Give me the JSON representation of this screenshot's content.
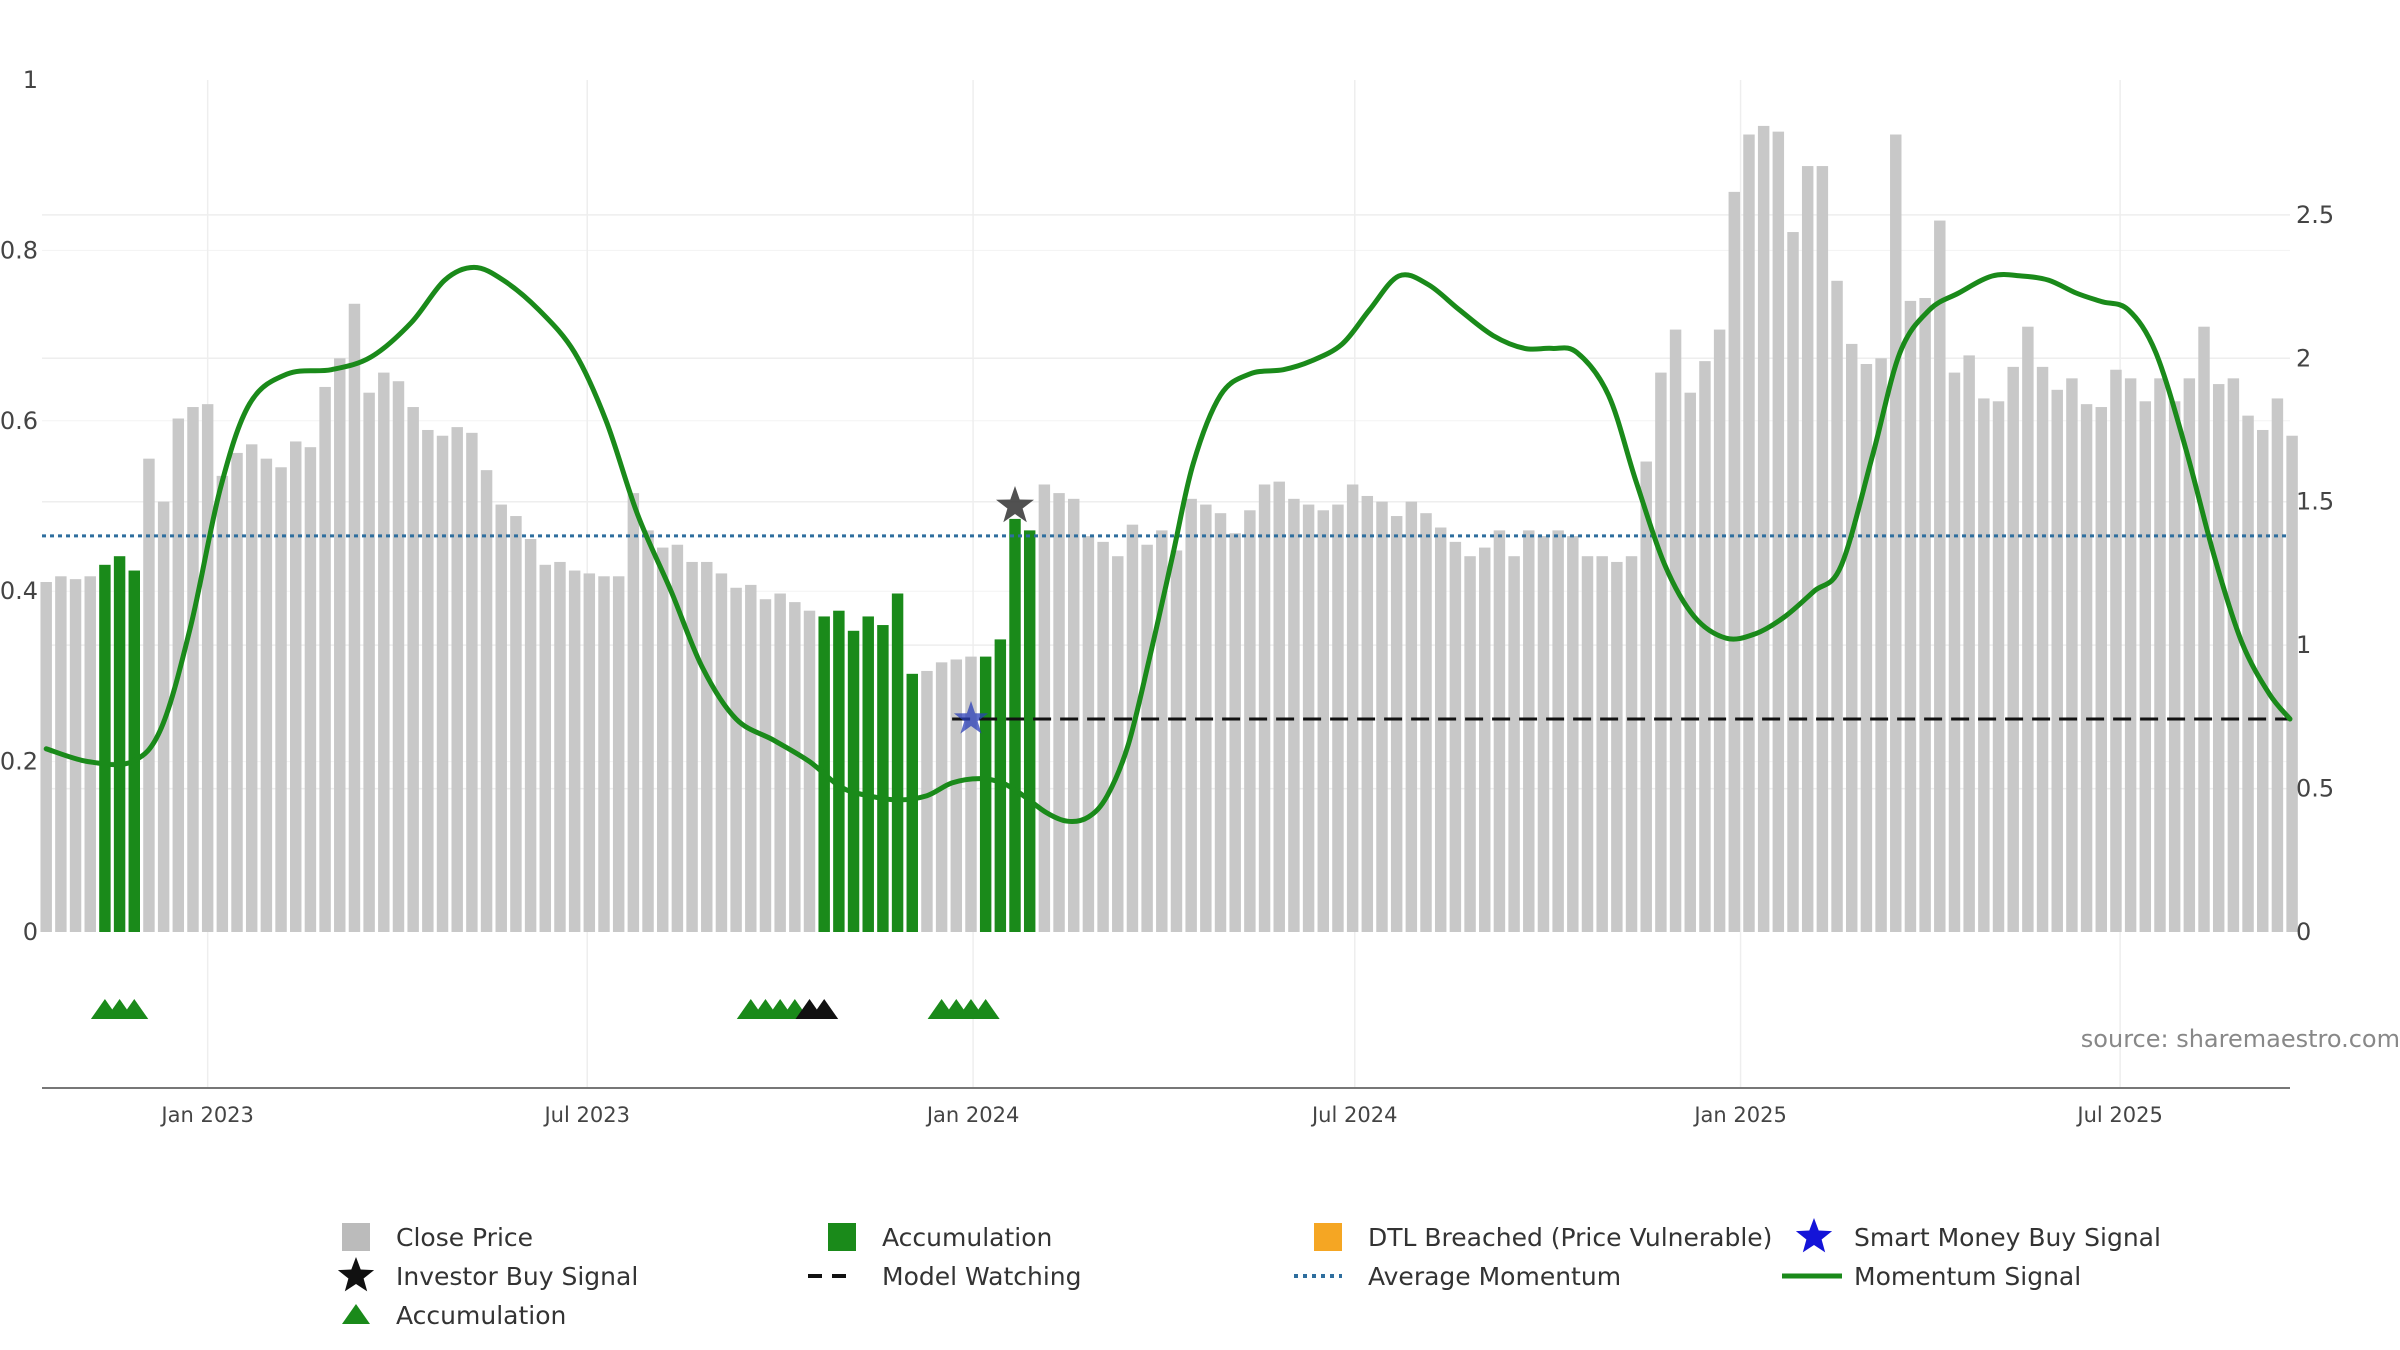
{
  "chart_data": {
    "type": "bar",
    "source": "source: sharemaestro.com",
    "left_axis": {
      "ticks": [
        0,
        0.2,
        0.4,
        0.6,
        0.8,
        1
      ],
      "tick_labels": [
        "0",
        "0.2",
        "0.4",
        "0.6",
        "0.8",
        "1"
      ],
      "ylim": [
        0,
        1
      ]
    },
    "right_axis": {
      "ticks": [
        0,
        0.5,
        1,
        1.5,
        2,
        2.5
      ],
      "tick_labels": [
        "0",
        "0.5",
        "1",
        "1.5",
        "2",
        "2.5"
      ],
      "ylim": [
        0,
        2.97
      ]
    },
    "x_axis": {
      "tick_labels": [
        "Jan 2023",
        "Jul 2023",
        "Jan 2024",
        "Jul 2024",
        "Jan 2025",
        "Jul 2025"
      ],
      "tick_dates": [
        "2023-01-01",
        "2023-07-01",
        "2024-01-01",
        "2024-07-01",
        "2025-01-01",
        "2025-07-01"
      ],
      "range": [
        "2022-10-14",
        "2025-09-20"
      ]
    },
    "close_price": {
      "name": "Close Price",
      "start_date": "2022-10-16",
      "interval_days": 7,
      "values": [
        1.22,
        1.24,
        1.23,
        1.24,
        1.28,
        1.31,
        1.26,
        1.65,
        1.5,
        1.79,
        1.83,
        1.84,
        1.59,
        1.67,
        1.7,
        1.65,
        1.62,
        1.71,
        1.69,
        1.9,
        2.0,
        2.19,
        1.88,
        1.95,
        1.92,
        1.83,
        1.75,
        1.73,
        1.76,
        1.74,
        1.61,
        1.49,
        1.45,
        1.37,
        1.28,
        1.29,
        1.26,
        1.25,
        1.24,
        1.24,
        1.53,
        1.4,
        1.34,
        1.35,
        1.29,
        1.29,
        1.25,
        1.2,
        1.21,
        1.16,
        1.18,
        1.15,
        1.12,
        1.1,
        1.12,
        1.05,
        1.1,
        1.07,
        1.18,
        0.9,
        0.91,
        0.94,
        0.95,
        0.96,
        0.96,
        1.02,
        1.44,
        1.4,
        1.56,
        1.53,
        1.51,
        1.38,
        1.36,
        1.31,
        1.42,
        1.35,
        1.4,
        1.33,
        1.51,
        1.49,
        1.46,
        1.39,
        1.47,
        1.56,
        1.57,
        1.51,
        1.49,
        1.47,
        1.49,
        1.56,
        1.52,
        1.5,
        1.45,
        1.5,
        1.46,
        1.41,
        1.36,
        1.31,
        1.34,
        1.4,
        1.31,
        1.4,
        1.38,
        1.4,
        1.38,
        1.31,
        1.31,
        1.29,
        1.31,
        1.64,
        1.95,
        2.1,
        1.88,
        1.99,
        2.1,
        2.58,
        2.78,
        2.81,
        2.79,
        2.44,
        2.67,
        2.67,
        2.27,
        2.05,
        1.98,
        2.0,
        2.78,
        2.2,
        2.21,
        2.48,
        1.95,
        2.01,
        1.86,
        1.85,
        1.97,
        2.11,
        1.97,
        1.89,
        1.93,
        1.84,
        1.83,
        1.96,
        1.93,
        1.85,
        1.93,
        1.85,
        1.93,
        2.11,
        1.91,
        1.93,
        1.8,
        1.75,
        1.86,
        1.73
      ]
    },
    "accumulation_bars": {
      "name": "Accumulation",
      "color": "#1a8a1a",
      "indices": [
        4,
        5,
        6,
        53,
        54,
        55,
        56,
        57,
        58,
        59,
        64,
        65,
        66,
        67
      ]
    },
    "momentum_signal": {
      "name": "Momentum Signal",
      "color": "#1a8a1a",
      "axis": "left",
      "points": [
        [
          "2022-10-16",
          0.215
        ],
        [
          "2022-11-05",
          0.2
        ],
        [
          "2022-11-26",
          0.2
        ],
        [
          "2022-12-10",
          0.24
        ],
        [
          "2022-12-24",
          0.36
        ],
        [
          "2023-01-07",
          0.52
        ],
        [
          "2023-01-21",
          0.62
        ],
        [
          "2023-02-08",
          0.655
        ],
        [
          "2023-03-01",
          0.66
        ],
        [
          "2023-03-20",
          0.675
        ],
        [
          "2023-04-08",
          0.715
        ],
        [
          "2023-04-24",
          0.765
        ],
        [
          "2023-05-08",
          0.78
        ],
        [
          "2023-05-22",
          0.765
        ],
        [
          "2023-06-08",
          0.73
        ],
        [
          "2023-06-25",
          0.68
        ],
        [
          "2023-07-10",
          0.6
        ],
        [
          "2023-07-25",
          0.49
        ],
        [
          "2023-08-10",
          0.4
        ],
        [
          "2023-08-25",
          0.31
        ],
        [
          "2023-09-10",
          0.25
        ],
        [
          "2023-09-28",
          0.225
        ],
        [
          "2023-10-15",
          0.2
        ],
        [
          "2023-10-30",
          0.17
        ],
        [
          "2023-11-12",
          0.16
        ],
        [
          "2023-11-26",
          0.155
        ],
        [
          "2023-12-10",
          0.16
        ],
        [
          "2023-12-22",
          0.175
        ],
        [
          "2024-01-04",
          0.18
        ],
        [
          "2024-01-15",
          0.175
        ],
        [
          "2024-01-25",
          0.16
        ],
        [
          "2024-02-05",
          0.14
        ],
        [
          "2024-02-15",
          0.13
        ],
        [
          "2024-02-25",
          0.135
        ],
        [
          "2024-03-05",
          0.16
        ],
        [
          "2024-03-15",
          0.22
        ],
        [
          "2024-03-25",
          0.32
        ],
        [
          "2024-04-05",
          0.44
        ],
        [
          "2024-04-15",
          0.55
        ],
        [
          "2024-04-28",
          0.63
        ],
        [
          "2024-05-12",
          0.655
        ],
        [
          "2024-05-28",
          0.66
        ],
        [
          "2024-06-10",
          0.67
        ],
        [
          "2024-06-25",
          0.69
        ],
        [
          "2024-07-08",
          0.73
        ],
        [
          "2024-07-22",
          0.77
        ],
        [
          "2024-08-05",
          0.76
        ],
        [
          "2024-08-20",
          0.73
        ],
        [
          "2024-09-05",
          0.7
        ],
        [
          "2024-09-20",
          0.685
        ],
        [
          "2024-10-03",
          0.685
        ],
        [
          "2024-10-15",
          0.68
        ],
        [
          "2024-10-30",
          0.63
        ],
        [
          "2024-11-12",
          0.53
        ],
        [
          "2024-11-26",
          0.43
        ],
        [
          "2024-12-10",
          0.37
        ],
        [
          "2024-12-25",
          0.345
        ],
        [
          "2025-01-08",
          0.35
        ],
        [
          "2025-01-22",
          0.37
        ],
        [
          "2025-02-05",
          0.4
        ],
        [
          "2025-02-18",
          0.43
        ],
        [
          "2025-03-05",
          0.56
        ],
        [
          "2025-03-18",
          0.68
        ],
        [
          "2025-04-01",
          0.73
        ],
        [
          "2025-04-15",
          0.75
        ],
        [
          "2025-05-01",
          0.77
        ],
        [
          "2025-05-15",
          0.77
        ],
        [
          "2025-05-28",
          0.765
        ],
        [
          "2025-06-10",
          0.75
        ],
        [
          "2025-06-22",
          0.74
        ],
        [
          "2025-07-05",
          0.73
        ],
        [
          "2025-07-18",
          0.68
        ],
        [
          "2025-08-01",
          0.57
        ],
        [
          "2025-08-15",
          0.44
        ],
        [
          "2025-08-28",
          0.34
        ],
        [
          "2025-09-10",
          0.28
        ],
        [
          "2025-09-20",
          0.25
        ]
      ]
    },
    "average_momentum": {
      "name": "Average Momentum",
      "value": 0.465,
      "axis": "left",
      "color": "#2e6e9e"
    },
    "model_watching": {
      "name": "Model Watching",
      "value": 0.25,
      "axis": "left",
      "start_date": "2023-12-22",
      "end_date": "2025-09-20",
      "color": "#111111"
    },
    "investor_buy_signal": {
      "name": "Investor Buy Signal",
      "date": "2024-01-21",
      "value": 0.5,
      "axis": "left"
    },
    "smart_money_buy_signal": {
      "name": "Smart Money Buy Signal",
      "date": "2023-12-31",
      "value": 0.25,
      "axis": "left"
    },
    "accumulation_markers": {
      "name": "Accumulation",
      "green_dates": [
        "2022-11-13",
        "2022-11-20",
        "2022-11-27",
        "2023-09-17",
        "2023-09-24",
        "2023-10-01",
        "2023-10-08",
        "2023-12-17",
        "2023-12-24",
        "2023-12-31",
        "2024-01-07"
      ],
      "black_dates": [
        "2023-10-15",
        "2023-10-22"
      ]
    },
    "legend": [
      {
        "label": "Close Price",
        "symbol": "square",
        "color": "#bbbbbb"
      },
      {
        "label": "Accumulation",
        "symbol": "square",
        "color": "#1a8a1a"
      },
      {
        "label": "DTL Breached (Price Vulnerable)",
        "symbol": "square",
        "color": "#f5a623"
      },
      {
        "label": "Smart Money Buy Signal",
        "symbol": "star",
        "color": "#1414d8"
      },
      {
        "label": "Investor Buy Signal",
        "symbol": "star",
        "color": "#111111"
      },
      {
        "label": "Model Watching",
        "symbol": "dash",
        "color": "#111111"
      },
      {
        "label": "Average Momentum",
        "symbol": "dots",
        "color": "#2e6e9e"
      },
      {
        "label": "Momentum Signal",
        "symbol": "line",
        "color": "#1a8a1a"
      },
      {
        "label": "Accumulation",
        "symbol": "triangle",
        "color": "#1a8a1a"
      }
    ]
  }
}
